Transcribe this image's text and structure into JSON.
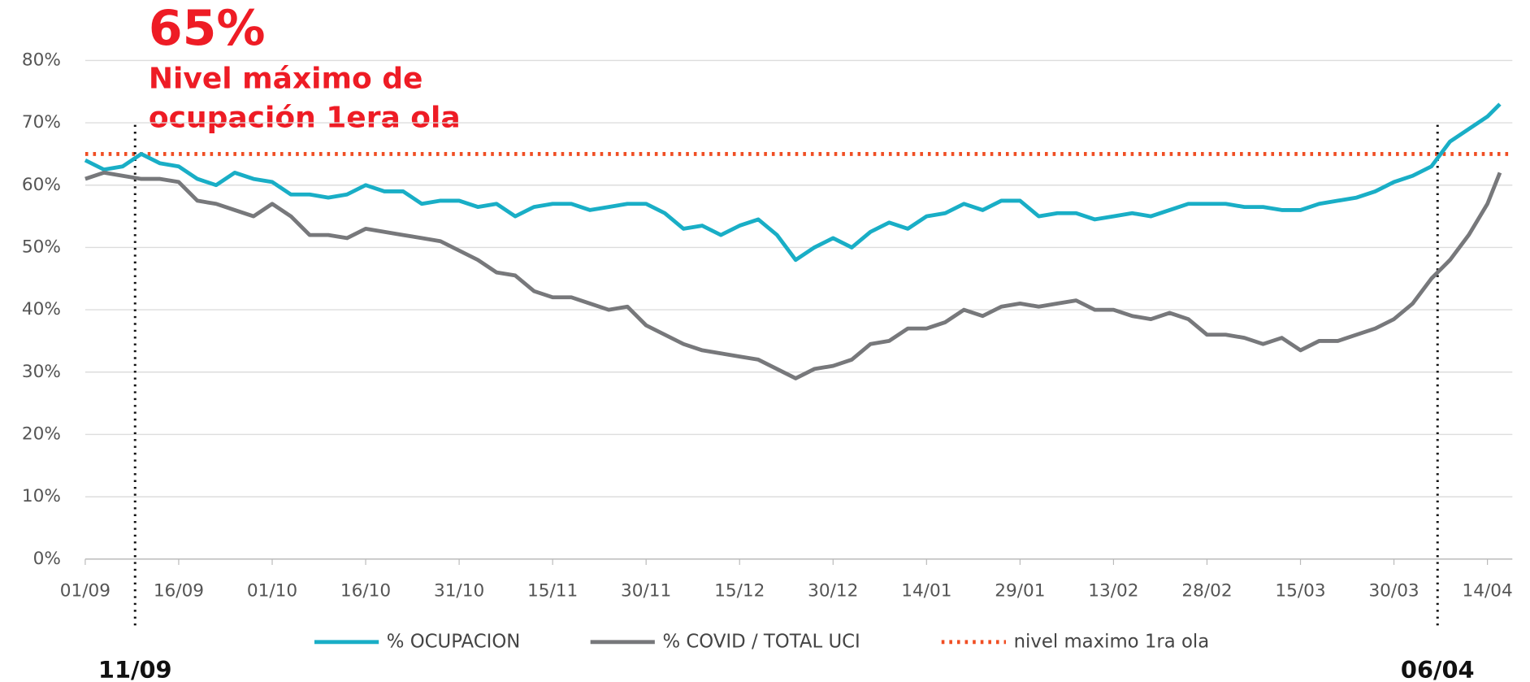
{
  "chart_data": {
    "type": "line",
    "x": [
      0,
      3,
      6,
      9,
      12,
      15,
      18,
      21,
      24,
      27,
      30,
      33,
      36,
      39,
      42,
      45,
      48,
      51,
      54,
      57,
      60,
      63,
      66,
      69,
      72,
      75,
      78,
      81,
      84,
      87,
      90,
      93,
      96,
      99,
      102,
      105,
      108,
      111,
      114,
      117,
      120,
      123,
      126,
      129,
      132,
      135,
      138,
      141,
      144,
      147,
      150,
      153,
      156,
      159,
      162,
      165,
      168,
      171,
      174,
      177,
      180,
      183,
      186,
      189,
      192,
      195,
      198,
      201,
      204,
      207,
      210,
      213,
      216,
      219,
      222,
      225,
      227
    ],
    "xlim": [
      0,
      229
    ],
    "xticks": [
      {
        "value": 0,
        "label": "01/09"
      },
      {
        "value": 15,
        "label": "16/09"
      },
      {
        "value": 30,
        "label": "01/10"
      },
      {
        "value": 45,
        "label": "16/10"
      },
      {
        "value": 60,
        "label": "31/10"
      },
      {
        "value": 75,
        "label": "15/11"
      },
      {
        "value": 90,
        "label": "30/11"
      },
      {
        "value": 105,
        "label": "15/12"
      },
      {
        "value": 120,
        "label": "30/12"
      },
      {
        "value": 135,
        "label": "14/01"
      },
      {
        "value": 150,
        "label": "29/01"
      },
      {
        "value": 165,
        "label": "13/02"
      },
      {
        "value": 180,
        "label": "28/02"
      },
      {
        "value": 195,
        "label": "15/03"
      },
      {
        "value": 210,
        "label": "30/03"
      },
      {
        "value": 225,
        "label": "14/04"
      }
    ],
    "ylim": [
      0,
      80
    ],
    "yticks": [
      {
        "value": 0,
        "label": "0%"
      },
      {
        "value": 10,
        "label": "10%"
      },
      {
        "value": 20,
        "label": "20%"
      },
      {
        "value": 30,
        "label": "30%"
      },
      {
        "value": 40,
        "label": "40%"
      },
      {
        "value": 50,
        "label": "50%"
      },
      {
        "value": 60,
        "label": "60%"
      },
      {
        "value": 70,
        "label": "70%"
      },
      {
        "value": 80,
        "label": "80%"
      }
    ],
    "grid": true,
    "series": [
      {
        "name": "% OCUPACION",
        "color": "#19aec6",
        "values": [
          64,
          62.5,
          63,
          65,
          63.5,
          63,
          61,
          60,
          62,
          61,
          60.5,
          58.5,
          58.5,
          58,
          58.5,
          60,
          59,
          59,
          57,
          57.5,
          57.5,
          56.5,
          57,
          55,
          56.5,
          57,
          57,
          56,
          56.5,
          57,
          57,
          55.5,
          53,
          53.5,
          52,
          53.5,
          54.5,
          52,
          48,
          50,
          51.5,
          50,
          52.5,
          54,
          53,
          55,
          55.5,
          57,
          56,
          57.5,
          57.5,
          55,
          55.5,
          55.5,
          54.5,
          55,
          55.5,
          55,
          56,
          57,
          57,
          57,
          56.5,
          56.5,
          56,
          56,
          57,
          57.5,
          58,
          59,
          60.5,
          61.5,
          63,
          67,
          69,
          71,
          73
        ]
      },
      {
        "name": "% COVID / TOTAL UCI",
        "color": "#77787b",
        "values": [
          61,
          62,
          61.5,
          61,
          61,
          60.5,
          57.5,
          57,
          56,
          55,
          57,
          55,
          52,
          52,
          51.5,
          53,
          52.5,
          52,
          51.5,
          51,
          49.5,
          48,
          46,
          45.5,
          43,
          42,
          42,
          41,
          40,
          40.5,
          37.5,
          36,
          34.5,
          33.5,
          33,
          32.5,
          32,
          30.5,
          29,
          30.5,
          31,
          32,
          34.5,
          35,
          37,
          37,
          38,
          40,
          39,
          40.5,
          41,
          40.5,
          41,
          41.5,
          40,
          40,
          39,
          38.5,
          39.5,
          38.5,
          36,
          36,
          35.5,
          34.5,
          35.5,
          33.5,
          35,
          35,
          36,
          37,
          38.5,
          41,
          45,
          48,
          52,
          57,
          62
        ]
      }
    ],
    "reference": {
      "name": "nivel maximo 1ra ola",
      "value": 65,
      "color": "#f04e23"
    },
    "annotation": {
      "value": "65%",
      "lines": [
        "Nivel máximo de",
        "ocupación 1era ola"
      ],
      "color": "#ee1c25"
    },
    "markers": [
      {
        "x": 8,
        "label": "11/09"
      },
      {
        "x": 217,
        "label": "06/04"
      }
    ]
  }
}
